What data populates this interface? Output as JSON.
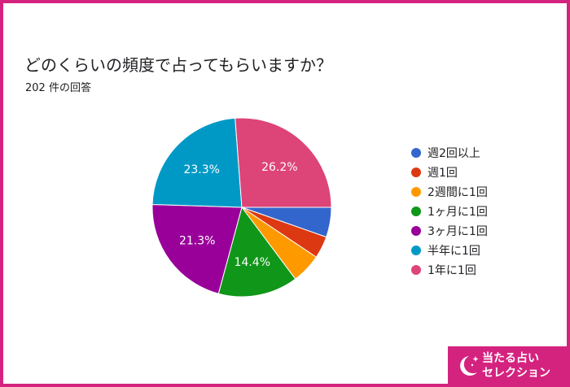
{
  "header": {
    "title": "どのくらいの頻度で占ってもらいますか？",
    "subtitle": "202 件の回答"
  },
  "chart_data": {
    "type": "pie",
    "title": "どのくらいの頻度で占ってもらいますか？",
    "start_angle_deg": 90,
    "direction": "clockwise",
    "legend_position": "right",
    "slices": [
      {
        "label": "週2回以上",
        "value": 5.4,
        "color": "#3366cc",
        "show_label": false
      },
      {
        "label": "週1回",
        "value": 4.0,
        "color": "#dc3912",
        "show_label": false
      },
      {
        "label": "2週間に1回",
        "value": 5.4,
        "color": "#ff9900",
        "show_label": false
      },
      {
        "label": "1ヶ月に1回",
        "value": 14.4,
        "color": "#109618",
        "show_label": true
      },
      {
        "label": "3ヶ月に1回",
        "value": 21.3,
        "color": "#990099",
        "show_label": true
      },
      {
        "label": "半年に1回",
        "value": 23.3,
        "color": "#0099c6",
        "show_label": true
      },
      {
        "label": "1年に1回",
        "value": 26.2,
        "color": "#dd4477",
        "show_label": true
      }
    ]
  },
  "brand": {
    "line1": "当たる占い",
    "line2": "セレクション",
    "color": "#d4237f"
  }
}
